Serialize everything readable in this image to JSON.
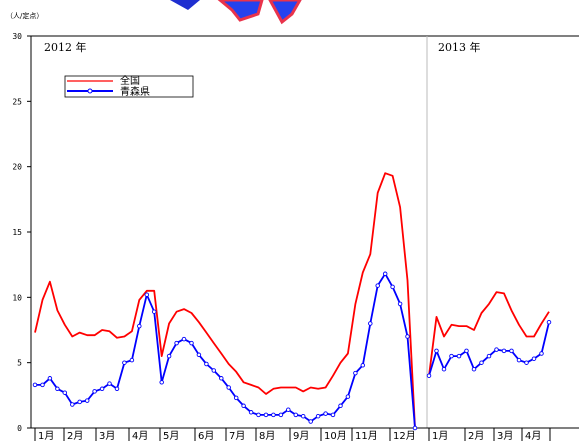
{
  "chart_data": {
    "type": "line",
    "unit_label": "（人/定点）",
    "ylim": [
      0,
      30
    ],
    "yticks": [
      "0",
      "5",
      "10",
      "15",
      "20",
      "25",
      "30"
    ],
    "year_labels": [
      "2012 年",
      "2013 年"
    ],
    "month_labels": [
      "1月",
      "2月",
      "3月",
      "4月",
      "5月",
      "6月",
      "7月",
      "8月",
      "9月",
      "10月",
      "11月",
      "12月",
      "1月",
      "2月",
      "3月",
      "4月"
    ],
    "legend": [
      "全国",
      "青森県"
    ],
    "grid": false,
    "legend_position": "top-left",
    "x_week_range_2012": [
      1,
      52
    ],
    "x_week_range_2013": [
      1,
      17
    ],
    "series": [
      {
        "name": "全国",
        "color": "#ff0000",
        "segments": [
          {
            "year": 2012,
            "x": [
              1,
              2,
              3,
              4,
              5,
              6,
              7,
              8,
              9,
              10,
              11,
              12,
              13,
              14,
              15,
              16,
              17,
              18,
              19,
              20,
              21,
              22,
              23,
              24,
              25,
              26,
              27,
              28,
              29,
              30,
              31,
              32,
              33,
              34,
              35,
              36,
              37,
              38,
              39,
              40,
              41,
              42,
              43,
              44,
              45,
              46,
              47,
              48,
              49,
              50,
              51,
              52
            ],
            "y": [
              7.3,
              9.8,
              11.2,
              9.0,
              7.9,
              7.0,
              7.3,
              7.1,
              7.1,
              7.5,
              7.4,
              6.9,
              7.0,
              7.4,
              9.8,
              10.5,
              10.5,
              5.5,
              8.0,
              8.9,
              9.1,
              8.8,
              8.1,
              7.3,
              6.5,
              5.7,
              4.9,
              4.3,
              3.5,
              3.3,
              3.1,
              2.6,
              3.0,
              3.1,
              3.1,
              3.1,
              2.8,
              3.1,
              3.0,
              3.1,
              4.0,
              5.0,
              5.7,
              9.5,
              11.9,
              13.3,
              18.0,
              19.5,
              19.3,
              16.9,
              11.3,
              0
            ]
          },
          {
            "year": 2013,
            "x": [
              1,
              2,
              3,
              4,
              5,
              6,
              7,
              8,
              9,
              10,
              11,
              12,
              13,
              14,
              15,
              16,
              17
            ],
            "y": [
              4.0,
              8.5,
              7.0,
              7.9,
              7.8,
              7.8,
              7.5,
              8.8,
              9.5,
              10.4,
              10.3,
              9.0,
              7.9,
              7.0,
              7.0,
              8.0,
              8.9
            ]
          }
        ]
      },
      {
        "name": "青森県",
        "color": "#0000ff",
        "segments": [
          {
            "year": 2012,
            "x": [
              1,
              2,
              3,
              4,
              5,
              6,
              7,
              8,
              9,
              10,
              11,
              12,
              13,
              14,
              15,
              16,
              17,
              18,
              19,
              20,
              21,
              22,
              23,
              24,
              25,
              26,
              27,
              28,
              29,
              30,
              31,
              32,
              33,
              34,
              35,
              36,
              37,
              38,
              39,
              40,
              41,
              42,
              43,
              44,
              45,
              46,
              47,
              48,
              49,
              50,
              51,
              52
            ],
            "y": [
              3.3,
              3.3,
              3.8,
              3.0,
              2.7,
              1.8,
              2.0,
              2.1,
              2.8,
              3.0,
              3.4,
              3.0,
              5.0,
              5.2,
              7.8,
              10.2,
              8.9,
              3.5,
              5.5,
              6.5,
              6.8,
              6.5,
              5.6,
              4.9,
              4.4,
              3.8,
              3.1,
              2.3,
              1.7,
              1.2,
              1.0,
              1.0,
              1.0,
              1.0,
              1.4,
              1.0,
              0.9,
              0.5,
              0.9,
              1.1,
              1.0,
              1.7,
              2.4,
              4.2,
              4.8,
              8.0,
              10.9,
              11.8,
              10.8,
              9.5,
              7.0,
              0
            ]
          },
          {
            "year": 2013,
            "x": [
              1,
              2,
              3,
              4,
              5,
              6,
              7,
              8,
              9,
              10,
              11,
              12,
              13,
              14,
              15,
              16,
              17
            ],
            "y": [
              4.0,
              5.9,
              4.5,
              5.5,
              5.5,
              5.9,
              4.5,
              5.0,
              5.5,
              6.0,
              5.9,
              5.9,
              5.2,
              5.0,
              5.3,
              5.7,
              8.1
            ]
          }
        ]
      }
    ]
  }
}
